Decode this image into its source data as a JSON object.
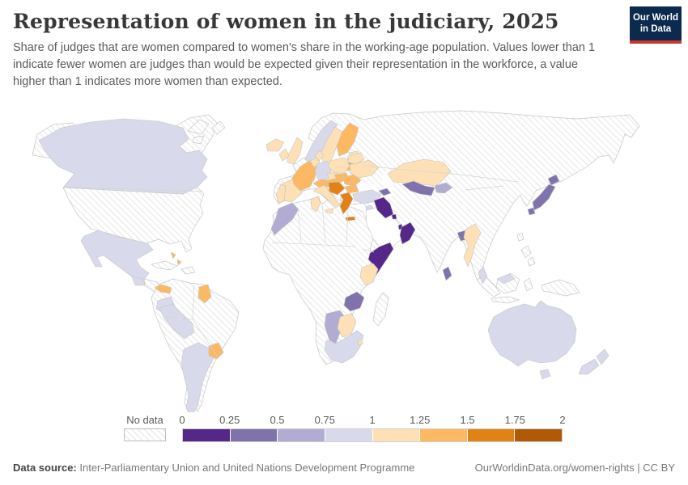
{
  "header": {
    "title": "Representation of women in the judiciary, 2025",
    "subtitle": "Share of judges that are women compared to women's share in the working-age population. Values lower than 1 indicate fewer women are judges than would be expected given their representation in the workforce, a value higher than 1 indicates more women than expected.",
    "logo": {
      "line1": "Our World",
      "line2": "in Data",
      "bg_color": "#0b2a4e",
      "accent_color": "#c0392b"
    }
  },
  "legend": {
    "no_data_label": "No data",
    "ticks": [
      "0",
      "0.25",
      "0.5",
      "0.75",
      "1",
      "1.25",
      "1.5",
      "1.75",
      "2"
    ],
    "bins": [
      {
        "range": "0–0.25",
        "color": "#542788"
      },
      {
        "range": "0.25–0.5",
        "color": "#8073ac"
      },
      {
        "range": "0.5–0.75",
        "color": "#b2abd2"
      },
      {
        "range": "0.75–1",
        "color": "#d8daeb"
      },
      {
        "range": "1–1.25",
        "color": "#fee0b6"
      },
      {
        "range": "1.25–1.5",
        "color": "#fdb863"
      },
      {
        "range": "1.5–1.75",
        "color": "#e08214"
      },
      {
        "range": "1.75–2",
        "color": "#b35806"
      }
    ]
  },
  "footer": {
    "source_label": "Data source:",
    "source_value": " Inter-Parliamentary Union and United Nations Development Programme",
    "right_text": "OurWorldinData.org/women-rights | CC BY"
  },
  "chart_data": {
    "type": "choropleth",
    "title": "Representation of women in the judiciary",
    "year": 2025,
    "metric": "Ratio of women's share among judges to women's share of the working-age population",
    "scale_range": [
      0,
      2
    ],
    "no_data_style": "diagonal-hatch",
    "colors": {
      "ocean": "#ffffff",
      "land_border": "#c9c9c9",
      "hatch_line": "#dcdcdc"
    },
    "legend_bins": [
      {
        "range": "0–0.25",
        "color": "#542788"
      },
      {
        "range": "0.25–0.5",
        "color": "#8073ac"
      },
      {
        "range": "0.5–0.75",
        "color": "#b2abd2"
      },
      {
        "range": "0.75–1",
        "color": "#d8daeb"
      },
      {
        "range": "1–1.25",
        "color": "#fee0b6"
      },
      {
        "range": "1.25–1.5",
        "color": "#fdb863"
      },
      {
        "range": "1.5–1.75",
        "color": "#e08214"
      },
      {
        "range": "1.75–2",
        "color": "#b35806"
      }
    ],
    "countries": {
      "canada": {
        "bin": "0.75–1",
        "color": "#d8daeb"
      },
      "mexico": {
        "bin": "0.75–1",
        "color": "#d8daeb"
      },
      "guatemala": {
        "bin": "0.75–1",
        "color": "#d8daeb"
      },
      "panama": {
        "bin": "1.25–1.5",
        "color": "#fdb863"
      },
      "bahamas": {
        "bin": "1.25–1.5",
        "color": "#fdb863"
      },
      "ecuador": {
        "bin": "0.75–1",
        "color": "#d8daeb"
      },
      "peru": {
        "bin": "0.75–1",
        "color": "#d8daeb"
      },
      "guyana": {
        "bin": "1.25–1.5",
        "color": "#fdb863"
      },
      "argentina": {
        "bin": "0.75–1",
        "color": "#d8daeb"
      },
      "uruguay": {
        "bin": "1.25–1.5",
        "color": "#fdb863"
      },
      "iceland": {
        "bin": "1–1.25",
        "color": "#fee0b6"
      },
      "united-kingdom": {
        "bin": "1–1.25",
        "color": "#fee0b6"
      },
      "ireland": {
        "bin": "1–1.25",
        "color": "#fee0b6"
      },
      "portugal": {
        "bin": "1–1.25",
        "color": "#fee0b6"
      },
      "spain": {
        "bin": "1–1.25",
        "color": "#fee0b6"
      },
      "france": {
        "bin": "1.25–1.5",
        "color": "#fdb863"
      },
      "benelux": {
        "bin": "1–1.25",
        "color": "#fee0b6"
      },
      "germany": {
        "bin": "0.75–1",
        "color": "#d8daeb"
      },
      "denmark": {
        "bin": "1–1.25",
        "color": "#fee0b6"
      },
      "norway": {
        "bin": "0.75–1",
        "color": "#d8daeb"
      },
      "sweden": {
        "bin": "1–1.25",
        "color": "#fee0b6"
      },
      "finland": {
        "bin": "1.25–1.5",
        "color": "#fdb863"
      },
      "estonia": {
        "bin": "1–1.25",
        "color": "#fee0b6"
      },
      "latvia": {
        "bin": "1.5–1.75",
        "color": "#e08214"
      },
      "lithuania": {
        "bin": "1.25–1.5",
        "color": "#fdb863"
      },
      "poland": {
        "bin": "1–1.25",
        "color": "#fee0b6"
      },
      "czechia": {
        "bin": "1–1.25",
        "color": "#fee0b6"
      },
      "alpine": {
        "bin": "1.25–1.5",
        "color": "#fdb863"
      },
      "hungary": {
        "bin": "1.25–1.5",
        "color": "#fdb863"
      },
      "italy": {
        "bin": "1–1.25",
        "color": "#fee0b6"
      },
      "balkans": {
        "bin": "1.5–1.75",
        "color": "#e08214"
      },
      "romania": {
        "bin": "1.25–1.5",
        "color": "#fdb863"
      },
      "bulgaria": {
        "bin": "1.25–1.5",
        "color": "#fdb863"
      },
      "greece": {
        "bin": "1.5–1.75",
        "color": "#e08214"
      },
      "ukraine": {
        "bin": "1–1.25",
        "color": "#fee0b6"
      },
      "belarus": {
        "bin": "1–1.25",
        "color": "#fee0b6"
      },
      "turkey": {
        "bin": "0.75–1",
        "color": "#d8daeb"
      },
      "cyprus": {
        "bin": "0.75–1",
        "color": "#d8daeb"
      },
      "morocco": {
        "bin": "0.5–0.75",
        "color": "#b2abd2"
      },
      "tunisia": {
        "bin": "1–1.25",
        "color": "#fee0b6"
      },
      "kenya": {
        "bin": "1–1.25",
        "color": "#fee0b6"
      },
      "somalia": {
        "bin": "0–0.25",
        "color": "#542788"
      },
      "zambia": {
        "bin": "0.25–0.5",
        "color": "#8073ac"
      },
      "namibia": {
        "bin": "0.5–0.75",
        "color": "#b2abd2"
      },
      "botswana": {
        "bin": "1–1.25",
        "color": "#fee0b6"
      },
      "south-africa": {
        "bin": "0.75–1",
        "color": "#d8daeb"
      },
      "eswatini": {
        "bin": "1–1.25",
        "color": "#fee0b6"
      },
      "iraq": {
        "bin": "0–0.25",
        "color": "#542788"
      },
      "kuwait": {
        "bin": "0–0.25",
        "color": "#542788"
      },
      "qatar": {
        "bin": "0–0.25",
        "color": "#542788"
      },
      "oman": {
        "bin": "0–0.25",
        "color": "#542788"
      },
      "azerbaijan": {
        "bin": "0.25–0.5",
        "color": "#8073ac"
      },
      "kazakhstan": {
        "bin": "1–1.25",
        "color": "#fee0b6"
      },
      "uzbekistan": {
        "bin": "0.25–0.5",
        "color": "#8073ac"
      },
      "kyrgyzstan": {
        "bin": "0.5–0.75",
        "color": "#b2abd2"
      },
      "bangladesh": {
        "bin": "0.25–0.5",
        "color": "#8073ac"
      },
      "myanmar": {
        "bin": "1–1.25",
        "color": "#fee0b6"
      },
      "sri-lanka": {
        "bin": "0.25–0.5",
        "color": "#8073ac"
      },
      "malaysia": {
        "bin": "0.75–1",
        "color": "#d8daeb"
      },
      "japan": {
        "bin": "0.25–0.5",
        "color": "#8073ac"
      },
      "australia": {
        "bin": "0.75–1",
        "color": "#d8daeb"
      },
      "new-zealand": {
        "bin": "0.75–1",
        "color": "#d8daeb"
      },
      "saudi-arabia": {
        "bin": "no data",
        "color": "#ffffff"
      }
    }
  }
}
